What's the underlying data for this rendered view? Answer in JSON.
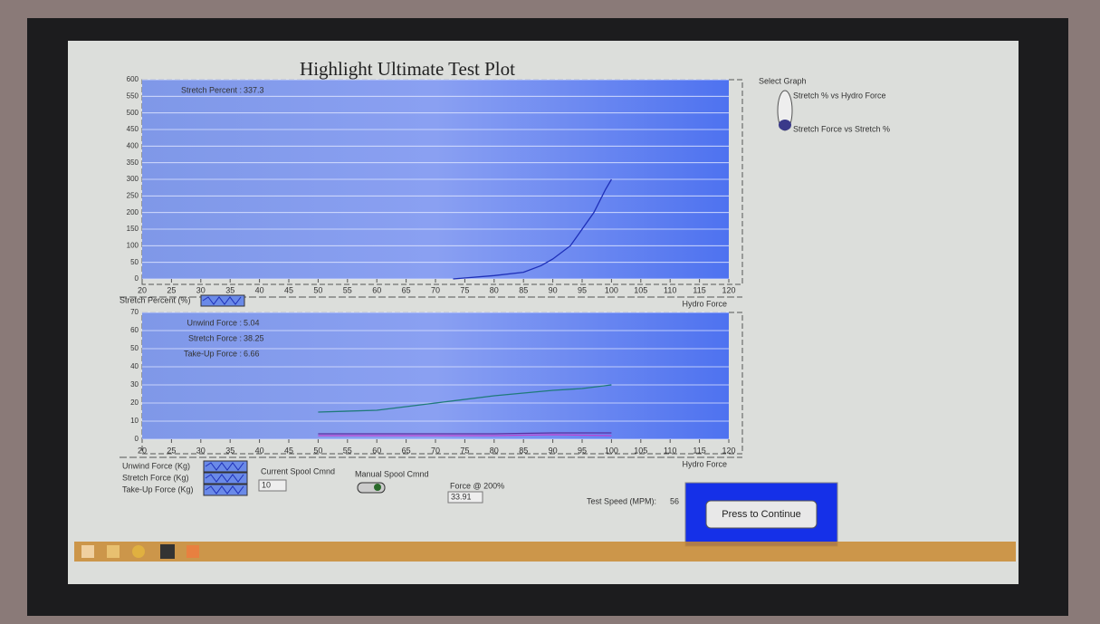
{
  "screen": {
    "title": "Highlight Ultimate Test Plot",
    "select_graph": {
      "title": "Select Graph",
      "options": [
        "Stretch % vs Hydro Force",
        "Stretch Force vs Stretch %"
      ]
    },
    "controls": {
      "current_spool_cmnd": {
        "label": "Current Spool Cmnd",
        "value": 10
      },
      "manual_spool_cmnd": {
        "label": "Manual Spool Cmnd"
      },
      "force_200": {
        "label": "Force @ 200%",
        "value": 33.91
      },
      "test_speed": {
        "label": "Test Speed (MPM):",
        "value": 56
      },
      "button": "Press to Continue"
    }
  },
  "chart_data": [
    {
      "type": "line",
      "x_label": "Hydro Force",
      "xlim": [
        20,
        120
      ],
      "xticks": [
        20,
        25,
        30,
        35,
        40,
        45,
        50,
        55,
        60,
        65,
        70,
        75,
        80,
        85,
        90,
        95,
        100,
        105,
        110,
        115,
        120
      ],
      "ylim": [
        0,
        600
      ],
      "yticks": [
        0,
        50,
        100,
        150,
        200,
        250,
        300,
        350,
        400,
        450,
        500,
        550,
        600
      ],
      "grid": true,
      "readouts": [
        {
          "label": "Stretch Percent :",
          "value": 337.3
        }
      ],
      "series": [
        {
          "name": "Stretch Percent (%)",
          "color": "#1e2fb8",
          "x": [
            73,
            80,
            85,
            88,
            90,
            93,
            95,
            97,
            99,
            100
          ],
          "values": [
            0,
            10,
            20,
            40,
            60,
            100,
            150,
            200,
            270,
            300
          ]
        }
      ]
    },
    {
      "type": "line",
      "x_label": "Hydro Force",
      "xlim": [
        20,
        120
      ],
      "xticks": [
        20,
        25,
        30,
        35,
        40,
        45,
        50,
        55,
        60,
        65,
        70,
        75,
        80,
        85,
        90,
        95,
        100,
        105,
        110,
        115,
        120
      ],
      "ylim": [
        0,
        70
      ],
      "yticks": [
        0,
        10,
        20,
        30,
        40,
        50,
        60,
        70
      ],
      "grid": true,
      "readouts": [
        {
          "label": "Unwind Force :",
          "value": 5.04
        },
        {
          "label": "Stretch Force :",
          "value": 38.25
        },
        {
          "label": "Take-Up Force :",
          "value": 6.66
        }
      ],
      "series": [
        {
          "name": "Unwind Force (Kg)",
          "color": "#5a2fa0",
          "x": [
            50,
            60,
            70,
            80,
            90,
            100
          ],
          "values": [
            3,
            3,
            3,
            3,
            3.5,
            3.5
          ]
        },
        {
          "name": "Stretch Force (Kg)",
          "color": "#1f7a7a",
          "x": [
            50,
            60,
            70,
            80,
            90,
            95,
            100
          ],
          "values": [
            15,
            16,
            20,
            24,
            27,
            28,
            30
          ]
        },
        {
          "name": "Take-Up Force (Kg)",
          "color": "#c040d0",
          "x": [
            50,
            60,
            70,
            80,
            90,
            100
          ],
          "values": [
            2,
            2,
            2,
            2,
            2.5,
            2
          ]
        }
      ]
    }
  ]
}
